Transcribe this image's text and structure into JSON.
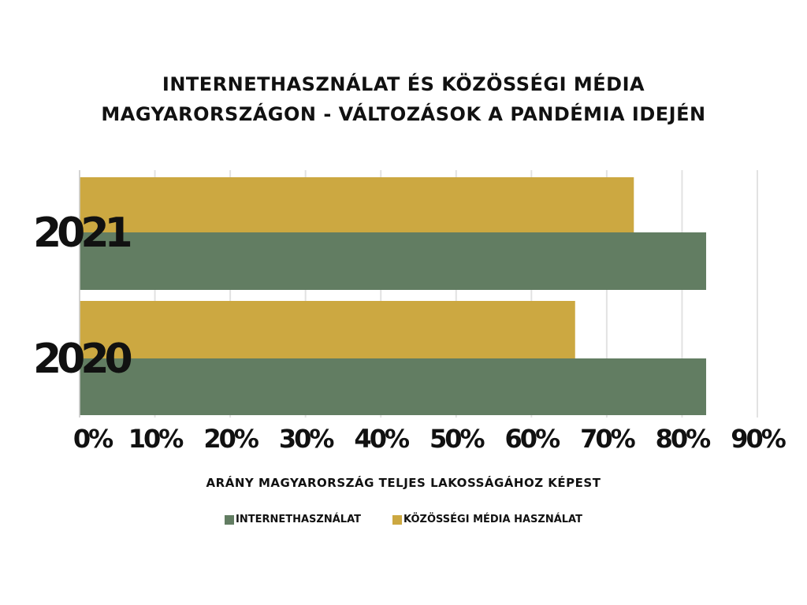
{
  "chart_data": {
    "type": "bar",
    "orientation": "horizontal",
    "title_lines": [
      "INTERNETHASZNÁLAT ÉS KÖZÖSSÉGI MÉDIA",
      "MAGYARORSZÁGON - VÁLTOZÁSOK A PANDÉMIA IDEJÉN"
    ],
    "xlabel": "ARÁNY MAGYARORSZÁG TELJES LAKOSSÁGÁHOZ KÉPEST",
    "ylabel": "",
    "categories": [
      "2021",
      "2020"
    ],
    "series": [
      {
        "name": "KÖZÖSSÉGI MÉDIA HASZNÁLAT",
        "color": "#CCA841",
        "values": [
          73.6,
          65.8
        ]
      },
      {
        "name": "INTERNETHASZNÁLAT",
        "color": "#627D62",
        "values": [
          83.2,
          83.2
        ]
      }
    ],
    "legend_order": [
      1,
      0
    ],
    "xlim": [
      0,
      90
    ],
    "xticks": [
      "0%",
      "10%",
      "20%",
      "30%",
      "40%",
      "50%",
      "60%",
      "70%",
      "80%",
      "90%"
    ],
    "grid": true,
    "legend_position": "bottom"
  }
}
